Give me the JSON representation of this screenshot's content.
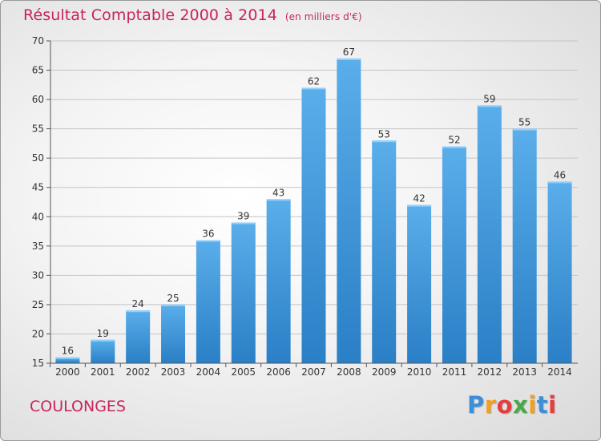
{
  "header": {
    "title": "Résultat Comptable 2000 à 2014",
    "subtitle": "(en milliers d'€)"
  },
  "footer": {
    "commune": "COULONGES",
    "logo_letters": [
      "P",
      "r",
      "o",
      "x",
      "i",
      "t",
      "i"
    ],
    "logo_colors": [
      "#3b8fd8",
      "#f0a020",
      "#e83c3c",
      "#4aa84a",
      "#f0a020",
      "#3b8fd8",
      "#e83c3c"
    ]
  },
  "colors": {
    "title": "#c8245a",
    "bar_light": "#5aaeea",
    "bar_dark": "#2a7fc6",
    "bar_top": "#8fd0ff"
  },
  "chart_data": {
    "type": "bar",
    "title": "Résultat Comptable 2000 à 2014",
    "subtitle": "(en milliers d'€)",
    "categories": [
      "2000",
      "2001",
      "2002",
      "2003",
      "2004",
      "2005",
      "2006",
      "2007",
      "2008",
      "2009",
      "2010",
      "2011",
      "2012",
      "2013",
      "2014"
    ],
    "values": [
      16,
      19,
      24,
      25,
      36,
      39,
      43,
      62,
      67,
      53,
      42,
      52,
      59,
      55,
      46
    ],
    "ylim": [
      15,
      70
    ],
    "yticks": [
      15,
      20,
      25,
      30,
      35,
      40,
      45,
      50,
      55,
      60,
      65,
      70
    ],
    "xlabel": "",
    "ylabel": "",
    "grid": true
  }
}
